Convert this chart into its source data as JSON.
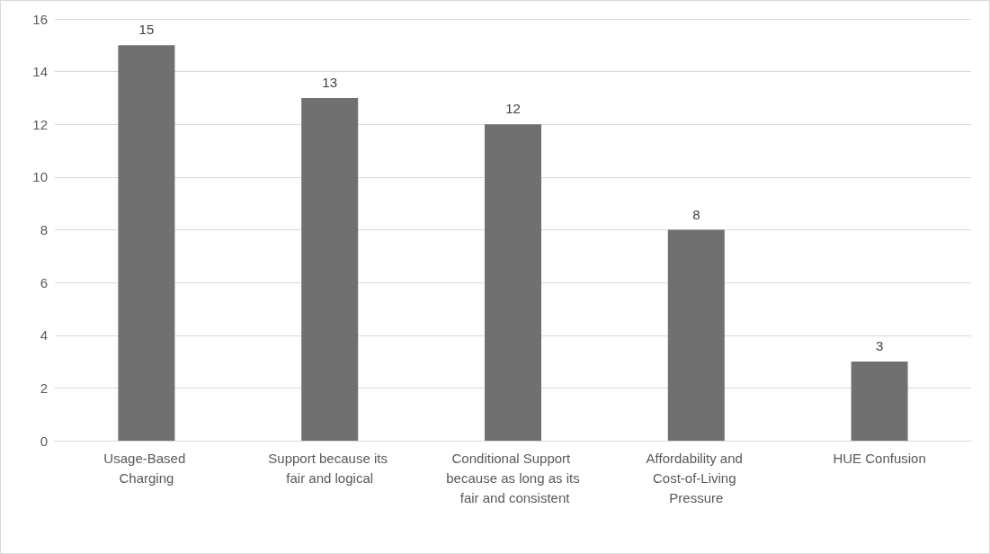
{
  "chart_data": {
    "type": "bar",
    "categories": [
      "Usage-Based Charging",
      "Support because its fair and logical",
      "Conditional Support because as long as its fair and consistent",
      "Affordability and Cost-of-Living Pressure",
      "HUE Confusion"
    ],
    "values": [
      15,
      13,
      12,
      8,
      3
    ],
    "color": "#707070",
    "ylim": [
      0,
      16
    ],
    "yticks": [
      0,
      2,
      4,
      6,
      8,
      10,
      12,
      14,
      16
    ],
    "grid": "y",
    "data_labels": true
  }
}
